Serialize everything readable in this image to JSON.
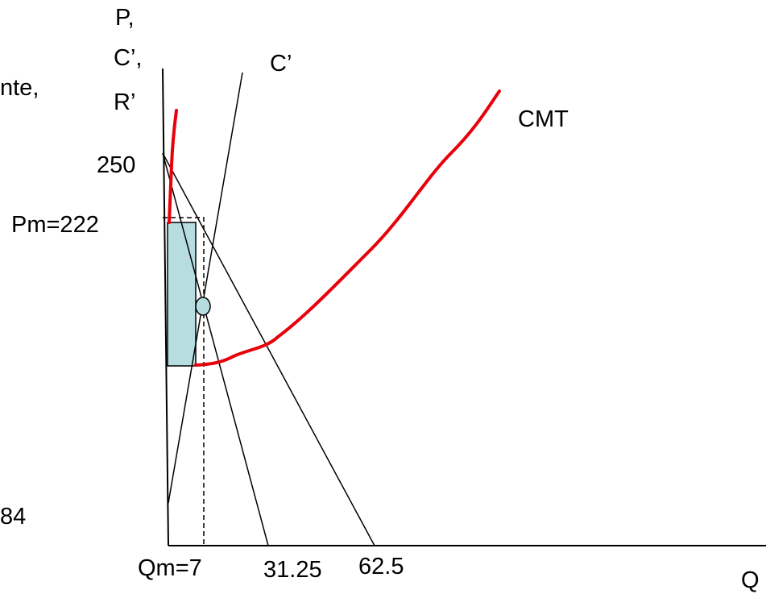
{
  "axes": {
    "y_label_lines": [
      "P,",
      "C’,",
      "R’"
    ],
    "x_label": "Q"
  },
  "labels": {
    "mc_curve": "C’",
    "atc_curve": "CMT",
    "price_intercept": "250",
    "monopoly_price": "Pm=222",
    "monopoly_quantity": "Qm=7",
    "mr_intercept": "31.25",
    "demand_intercept": "62.5",
    "left_fragment_top": "nte,",
    "left_fragment_bottom": "84"
  },
  "colors": {
    "axes": "#000000",
    "curves": "#000000",
    "atc_curve": "#e8000b",
    "profit_rect_fill": "#b7dde0",
    "profit_rect_stroke": "#000000"
  }
}
